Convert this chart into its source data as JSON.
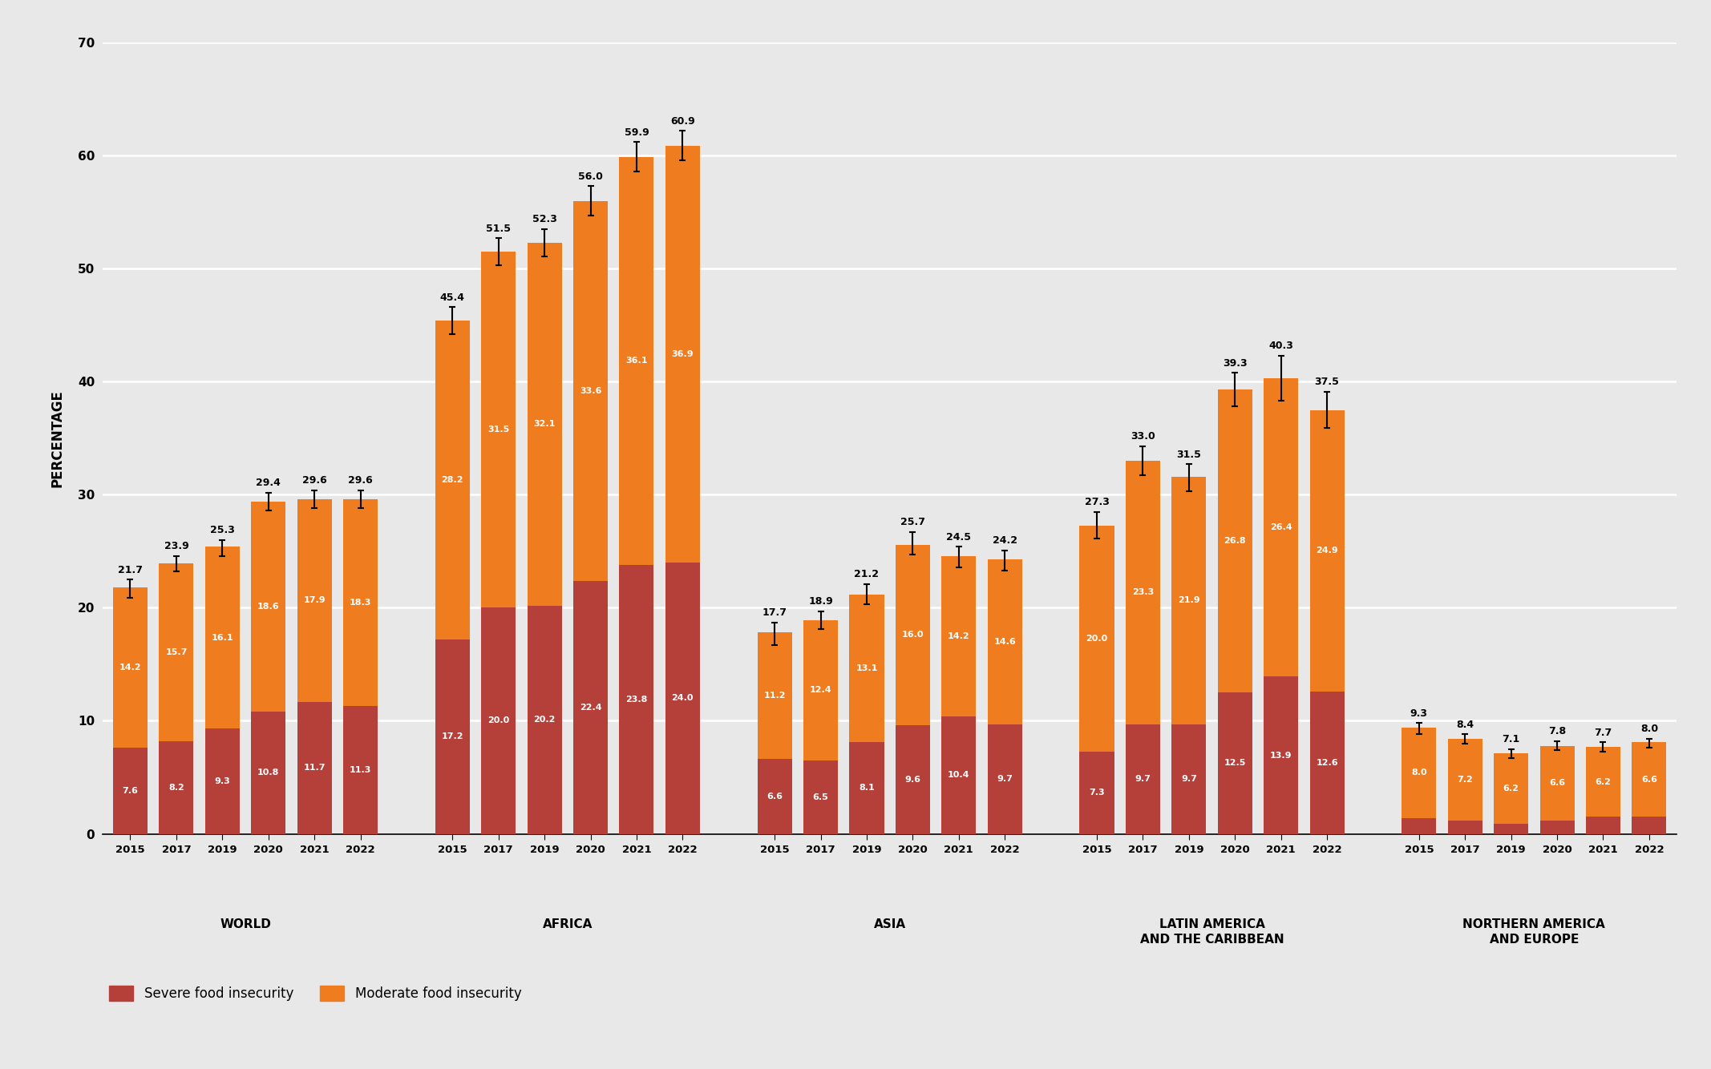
{
  "regions": [
    "WORLD",
    "AFRICA",
    "ASIA",
    "LATIN AMERICA\nAND THE CARIBBEAN",
    "NORTHERN AMERICA\nAND EUROPE"
  ],
  "years": [
    "2015",
    "2017",
    "2019",
    "2020",
    "2021",
    "2022"
  ],
  "severe": {
    "WORLD": [
      7.6,
      8.2,
      9.3,
      10.8,
      11.7,
      11.3
    ],
    "AFRICA": [
      17.2,
      20.0,
      20.2,
      22.4,
      23.8,
      24.0
    ],
    "ASIA": [
      6.6,
      6.5,
      8.1,
      9.6,
      10.4,
      9.7
    ],
    "LATIN AMERICA\nAND THE CARIBBEAN": [
      7.3,
      9.7,
      9.7,
      12.5,
      13.9,
      12.6
    ],
    "NORTHERN AMERICA\nAND EUROPE": [
      1.4,
      1.2,
      0.9,
      1.2,
      1.5,
      1.5
    ]
  },
  "moderate": {
    "WORLD": [
      14.2,
      15.7,
      16.1,
      18.6,
      17.9,
      18.3
    ],
    "AFRICA": [
      28.2,
      31.5,
      32.1,
      33.6,
      36.1,
      36.9
    ],
    "ASIA": [
      11.2,
      12.4,
      13.1,
      16.0,
      14.2,
      14.6
    ],
    "LATIN AMERICA\nAND THE CARIBBEAN": [
      20.0,
      23.3,
      21.9,
      26.8,
      26.4,
      24.9
    ],
    "NORTHERN AMERICA\nAND EUROPE": [
      8.0,
      7.2,
      6.2,
      6.6,
      6.2,
      6.6
    ]
  },
  "total": {
    "WORLD": [
      21.7,
      23.9,
      25.3,
      29.4,
      29.6,
      29.6
    ],
    "AFRICA": [
      45.4,
      51.5,
      52.3,
      56.0,
      59.9,
      60.9
    ],
    "ASIA": [
      17.7,
      18.9,
      21.2,
      25.7,
      24.5,
      24.2
    ],
    "LATIN AMERICA\nAND THE CARIBBEAN": [
      27.3,
      33.0,
      31.5,
      39.3,
      40.3,
      37.5
    ],
    "NORTHERN AMERICA\nAND EUROPE": [
      9.3,
      8.4,
      7.1,
      7.8,
      7.7,
      8.0
    ]
  },
  "error_bars": {
    "WORLD": [
      0.8,
      0.7,
      0.7,
      0.8,
      0.8,
      0.8
    ],
    "AFRICA": [
      1.2,
      1.2,
      1.2,
      1.3,
      1.3,
      1.3
    ],
    "ASIA": [
      1.0,
      0.8,
      0.9,
      1.0,
      0.9,
      0.9
    ],
    "LATIN AMERICA\nAND THE CARIBBEAN": [
      1.2,
      1.3,
      1.2,
      1.5,
      2.0,
      1.6
    ],
    "NORTHERN AMERICA\nAND EUROPE": [
      0.5,
      0.4,
      0.4,
      0.4,
      0.4,
      0.4
    ]
  },
  "severe_color": "#b5403a",
  "moderate_color": "#f07c20",
  "bg_color": "#e8e8e8",
  "ylabel": "PERCENTAGE",
  "ylim": [
    0,
    70
  ],
  "yticks": [
    0,
    10,
    20,
    30,
    40,
    50,
    60,
    70
  ]
}
